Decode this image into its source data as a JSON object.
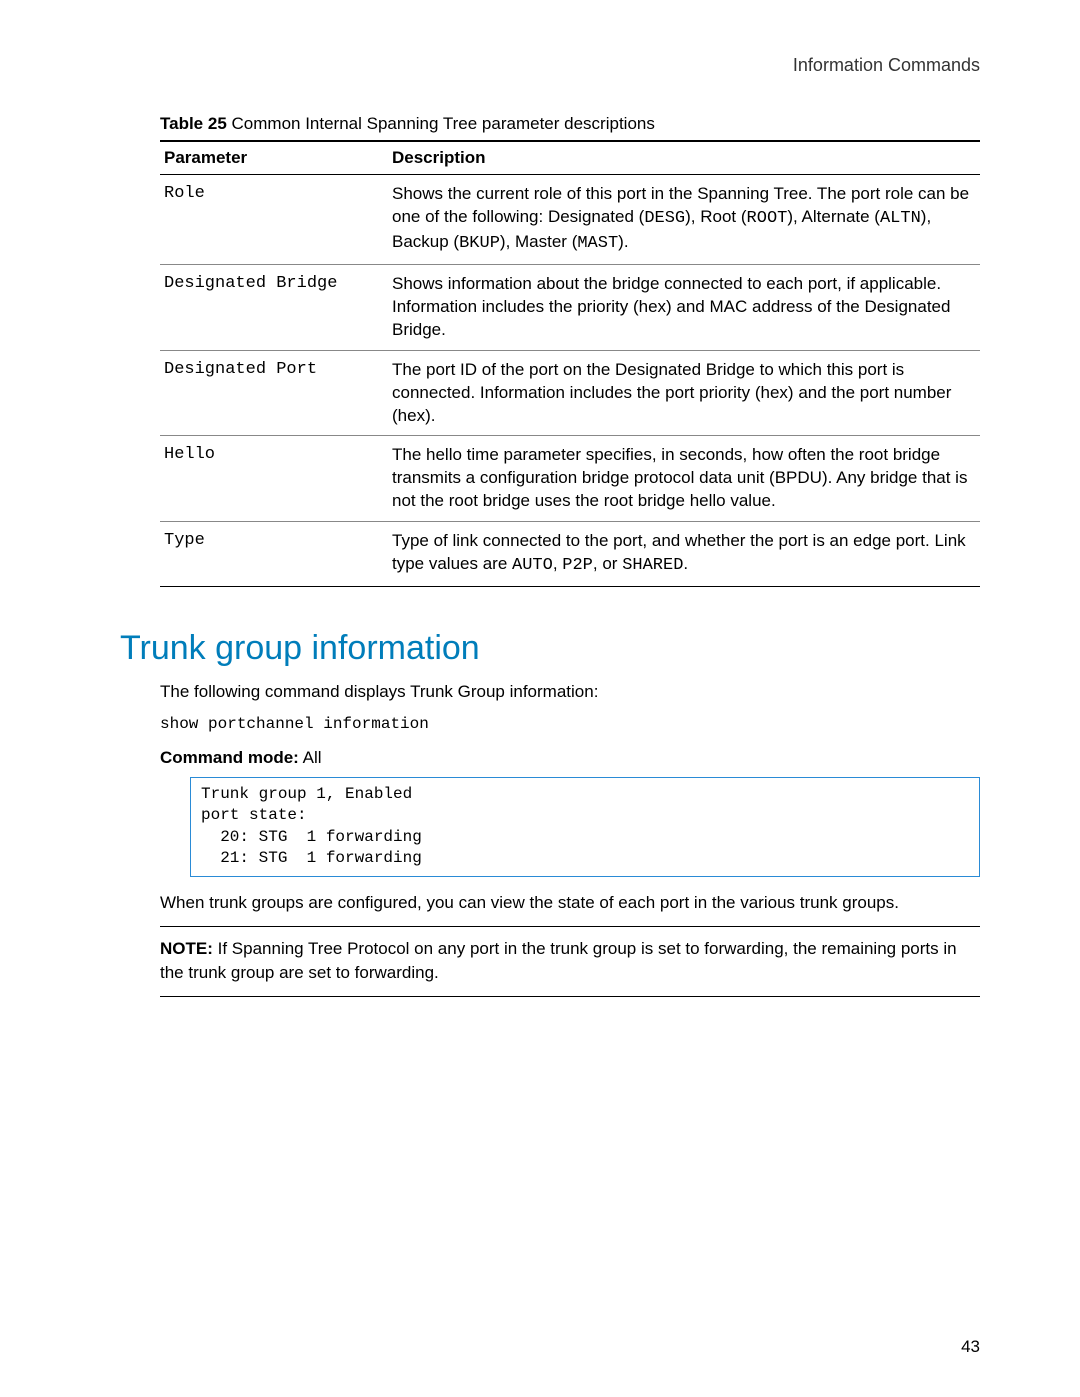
{
  "header": {
    "right": "Information Commands"
  },
  "table": {
    "caption_label": "Table 25",
    "caption_text": "Common Internal Spanning Tree parameter descriptions",
    "columns": [
      "Parameter",
      "Description"
    ],
    "rows": [
      {
        "param": "Role",
        "desc_pre": "Shows the current role of this port in the Spanning Tree. The port role can be one of the following: Designated (",
        "c1": "DESG",
        "m1": "), Root (",
        "c2": "ROOT",
        "m2": "), Alternate (",
        "c3": "ALTN",
        "m3": "), Backup (",
        "c4": "BKUP",
        "m4": "), Master (",
        "c5": "MAST",
        "m5": ")."
      },
      {
        "param": "Designated Bridge",
        "desc": "Shows information about the bridge connected to each port, if applicable. Information includes the priority (hex) and MAC address of the Designated Bridge."
      },
      {
        "param": "Designated Port",
        "desc": "The port ID of the port on the Designated Bridge to which this port is connected. Information includes the port priority (hex) and the port number (hex)."
      },
      {
        "param": "Hello",
        "desc": "The hello time parameter specifies, in seconds, how often the root bridge transmits a configuration bridge protocol data unit (BPDU). Any bridge that is not the root bridge uses the root bridge hello value."
      },
      {
        "param": "Type",
        "desc_pre": "Type of link connected to the port, and whether the port is an edge port. Link type values are ",
        "c1": "AUTO",
        "m1": ", ",
        "c2": "P2P",
        "m2": ", or ",
        "c3": "SHARED",
        "m3": "."
      }
    ]
  },
  "section": {
    "title": "Trunk group information",
    "intro": "The following command displays Trunk Group information:",
    "command": "show portchannel information",
    "cmd_mode_label": "Command mode:",
    "cmd_mode_value": " All",
    "code_block": "Trunk group 1, Enabled\nport state:\n  20: STG  1 forwarding\n  21: STG  1 forwarding",
    "after_box": "When trunk groups are configured, you can view the state of each port in the various trunk groups.",
    "note_label": "NOTE:",
    "note_text": " If Spanning Tree Protocol on any port in the trunk group is set to forwarding, the remaining ports in the trunk group are set to forwarding."
  },
  "page_number": "43"
}
